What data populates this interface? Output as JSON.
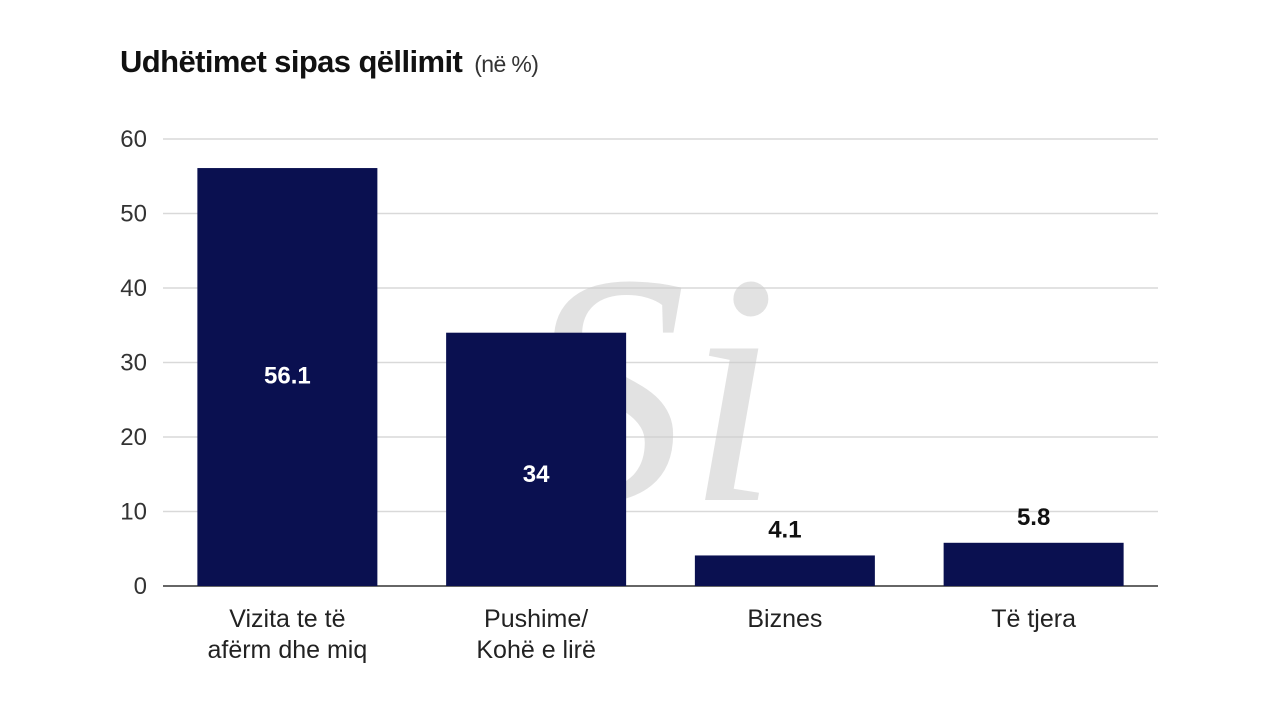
{
  "title": {
    "main": "Udhëtimet sipas qëllimit",
    "unit": "(në %)"
  },
  "watermark": {
    "letters": "Si",
    "color": "#cccccc"
  },
  "colors": {
    "bar": "#0a1050",
    "grid": "#d9d9d9",
    "axis": "#333333",
    "label_inside": "#ffffff",
    "label_outside": "#111111"
  },
  "chart_data": {
    "type": "bar",
    "title": "Udhëtimet sipas qëllimit (në %)",
    "categories": [
      [
        "Vizita te të",
        "afërm dhe miq"
      ],
      [
        "Pushime/",
        "Kohë e lirë"
      ],
      [
        "Biznes"
      ],
      [
        "Të tjera"
      ]
    ],
    "values": [
      56.1,
      34,
      4.1,
      5.8
    ],
    "value_labels": [
      "56.1",
      "34",
      "4.1",
      "5.8"
    ],
    "ylim": [
      0,
      60
    ],
    "yticks": [
      0,
      10,
      20,
      30,
      40,
      50,
      60
    ],
    "grid": true,
    "legend": "none"
  }
}
